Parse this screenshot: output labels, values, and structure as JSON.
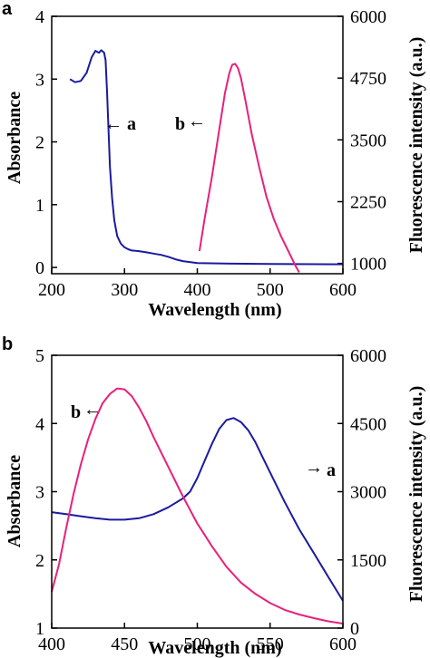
{
  "colors": {
    "series_a": "#1a1aa0",
    "series_b": "#e8207c",
    "axis": "#000000"
  },
  "chart_data": [
    {
      "type": "line",
      "panel_label": "a",
      "xlabel": "Wavelength (nm)",
      "ylabel": "Absorbance",
      "y2label": "Fluorescence intensity (a.u.)",
      "xlim": [
        200,
        600
      ],
      "ylim": [
        -0.1,
        4.0
      ],
      "y2lim": [
        792,
        6000
      ],
      "xticks": [
        "200",
        "300",
        "400",
        "500",
        "600"
      ],
      "yticks": [
        "0",
        "1",
        "2",
        "3",
        "4"
      ],
      "y2ticks": [
        "1000",
        "2250",
        "3500",
        "4750",
        "6000"
      ],
      "grid": false,
      "series": [
        {
          "name": "a",
          "axis": "left",
          "color": "#1a1aa0",
          "x": [
            225,
            232,
            240,
            248,
            255,
            260,
            265,
            268,
            270,
            272,
            274,
            276,
            278,
            280,
            283,
            286,
            290,
            295,
            300,
            305,
            310,
            320,
            330,
            340,
            350,
            360,
            370,
            380,
            400,
            450,
            500,
            600
          ],
          "y": [
            3.0,
            2.95,
            2.97,
            3.1,
            3.35,
            3.45,
            3.42,
            3.46,
            3.44,
            3.42,
            3.3,
            2.8,
            2.2,
            1.6,
            1.1,
            0.75,
            0.5,
            0.38,
            0.32,
            0.29,
            0.27,
            0.26,
            0.24,
            0.22,
            0.2,
            0.17,
            0.13,
            0.1,
            0.07,
            0.06,
            0.055,
            0.05
          ]
        },
        {
          "name": "b",
          "axis": "right",
          "color": "#e8207c",
          "x": [
            403,
            410,
            420,
            430,
            438,
            444,
            448,
            452,
            456,
            460,
            466,
            475,
            485,
            495,
            505,
            515,
            525,
            535,
            540
          ],
          "y": [
            1250,
            1900,
            2750,
            3700,
            4450,
            4850,
            5020,
            5040,
            4950,
            4750,
            4300,
            3600,
            2950,
            2350,
            1900,
            1550,
            1250,
            950,
            820
          ]
        }
      ],
      "annotations": [
        {
          "label": "a",
          "arrow": "←",
          "series": "a"
        },
        {
          "label": "b",
          "arrow": "←",
          "series": "b"
        }
      ]
    },
    {
      "type": "line",
      "panel_label": "b",
      "xlabel": "Wavelength (nm)",
      "ylabel": "Absorbance",
      "y2label": "Fluorescence intensity (a.u.)",
      "xlim": [
        400,
        600
      ],
      "ylim": [
        1,
        5
      ],
      "y2lim": [
        0,
        6000
      ],
      "xticks": [
        "400",
        "450",
        "500",
        "550",
        "600"
      ],
      "yticks": [
        "1",
        "2",
        "3",
        "4",
        "5"
      ],
      "y2ticks": [
        "0",
        "1500",
        "3000",
        "4500",
        "6000"
      ],
      "grid": false,
      "series": [
        {
          "name": "a",
          "axis": "left",
          "color": "#1a1aa0",
          "x": [
            400,
            410,
            420,
            430,
            440,
            450,
            460,
            470,
            480,
            490,
            495,
            500,
            505,
            510,
            515,
            520,
            525,
            530,
            535,
            540,
            545,
            550,
            560,
            570,
            580,
            590,
            600
          ],
          "y": [
            2.7,
            2.67,
            2.64,
            2.61,
            2.59,
            2.59,
            2.61,
            2.67,
            2.77,
            2.9,
            3.0,
            3.2,
            3.45,
            3.7,
            3.92,
            4.05,
            4.08,
            4.02,
            3.9,
            3.72,
            3.5,
            3.28,
            2.85,
            2.45,
            2.1,
            1.75,
            1.4
          ]
        },
        {
          "name": "b",
          "axis": "right",
          "color": "#e8207c",
          "x": [
            400,
            405,
            410,
            415,
            420,
            425,
            430,
            435,
            440,
            445,
            450,
            455,
            460,
            465,
            470,
            480,
            490,
            500,
            510,
            520,
            530,
            540,
            550,
            560,
            570,
            580,
            590,
            600
          ],
          "y": [
            800,
            1400,
            2200,
            2950,
            3600,
            4150,
            4600,
            4950,
            5150,
            5270,
            5250,
            5100,
            4850,
            4550,
            4200,
            3550,
            2900,
            2300,
            1800,
            1350,
            1000,
            750,
            550,
            400,
            300,
            220,
            150,
            100
          ]
        }
      ],
      "annotations": [
        {
          "label": "a",
          "arrow": "→",
          "series": "a"
        },
        {
          "label": "b",
          "arrow": "←",
          "series": "b"
        }
      ]
    }
  ]
}
